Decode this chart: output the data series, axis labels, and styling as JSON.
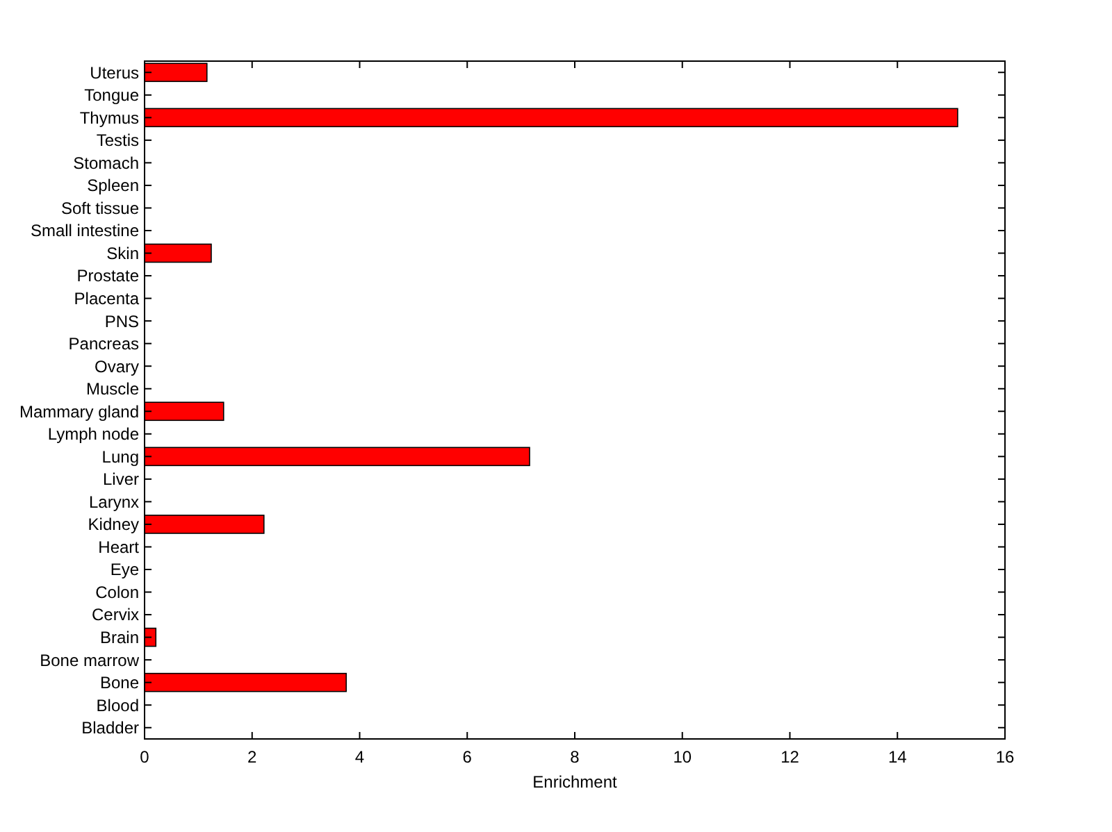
{
  "chart_data": {
    "type": "bar",
    "orientation": "horizontal",
    "xlabel": "Enrichment",
    "categories": [
      "Uterus",
      "Tongue",
      "Thymus",
      "Testis",
      "Stomach",
      "Spleen",
      "Soft tissue",
      "Small intestine",
      "Skin",
      "Prostate",
      "Placenta",
      "PNS",
      "Pancreas",
      "Ovary",
      "Muscle",
      "Mammary gland",
      "Lymph node",
      "Lung",
      "Liver",
      "Larynx",
      "Kidney",
      "Heart",
      "Eye",
      "Colon",
      "Cervix",
      "Brain",
      "Bone marrow",
      "Bone",
      "Blood",
      "Bladder"
    ],
    "values": [
      1.16,
      0,
      15.12,
      0,
      0,
      0,
      0,
      0,
      1.24,
      0,
      0,
      0,
      0,
      0,
      0,
      1.47,
      0,
      7.16,
      0,
      0,
      2.22,
      0,
      0,
      0,
      0,
      0.21,
      0,
      3.75,
      0,
      0
    ],
    "color": "#ff0000",
    "xlim": [
      0,
      16
    ],
    "xticks": [
      0,
      2,
      4,
      6,
      8,
      10,
      12,
      14,
      16
    ],
    "grid": false
  }
}
